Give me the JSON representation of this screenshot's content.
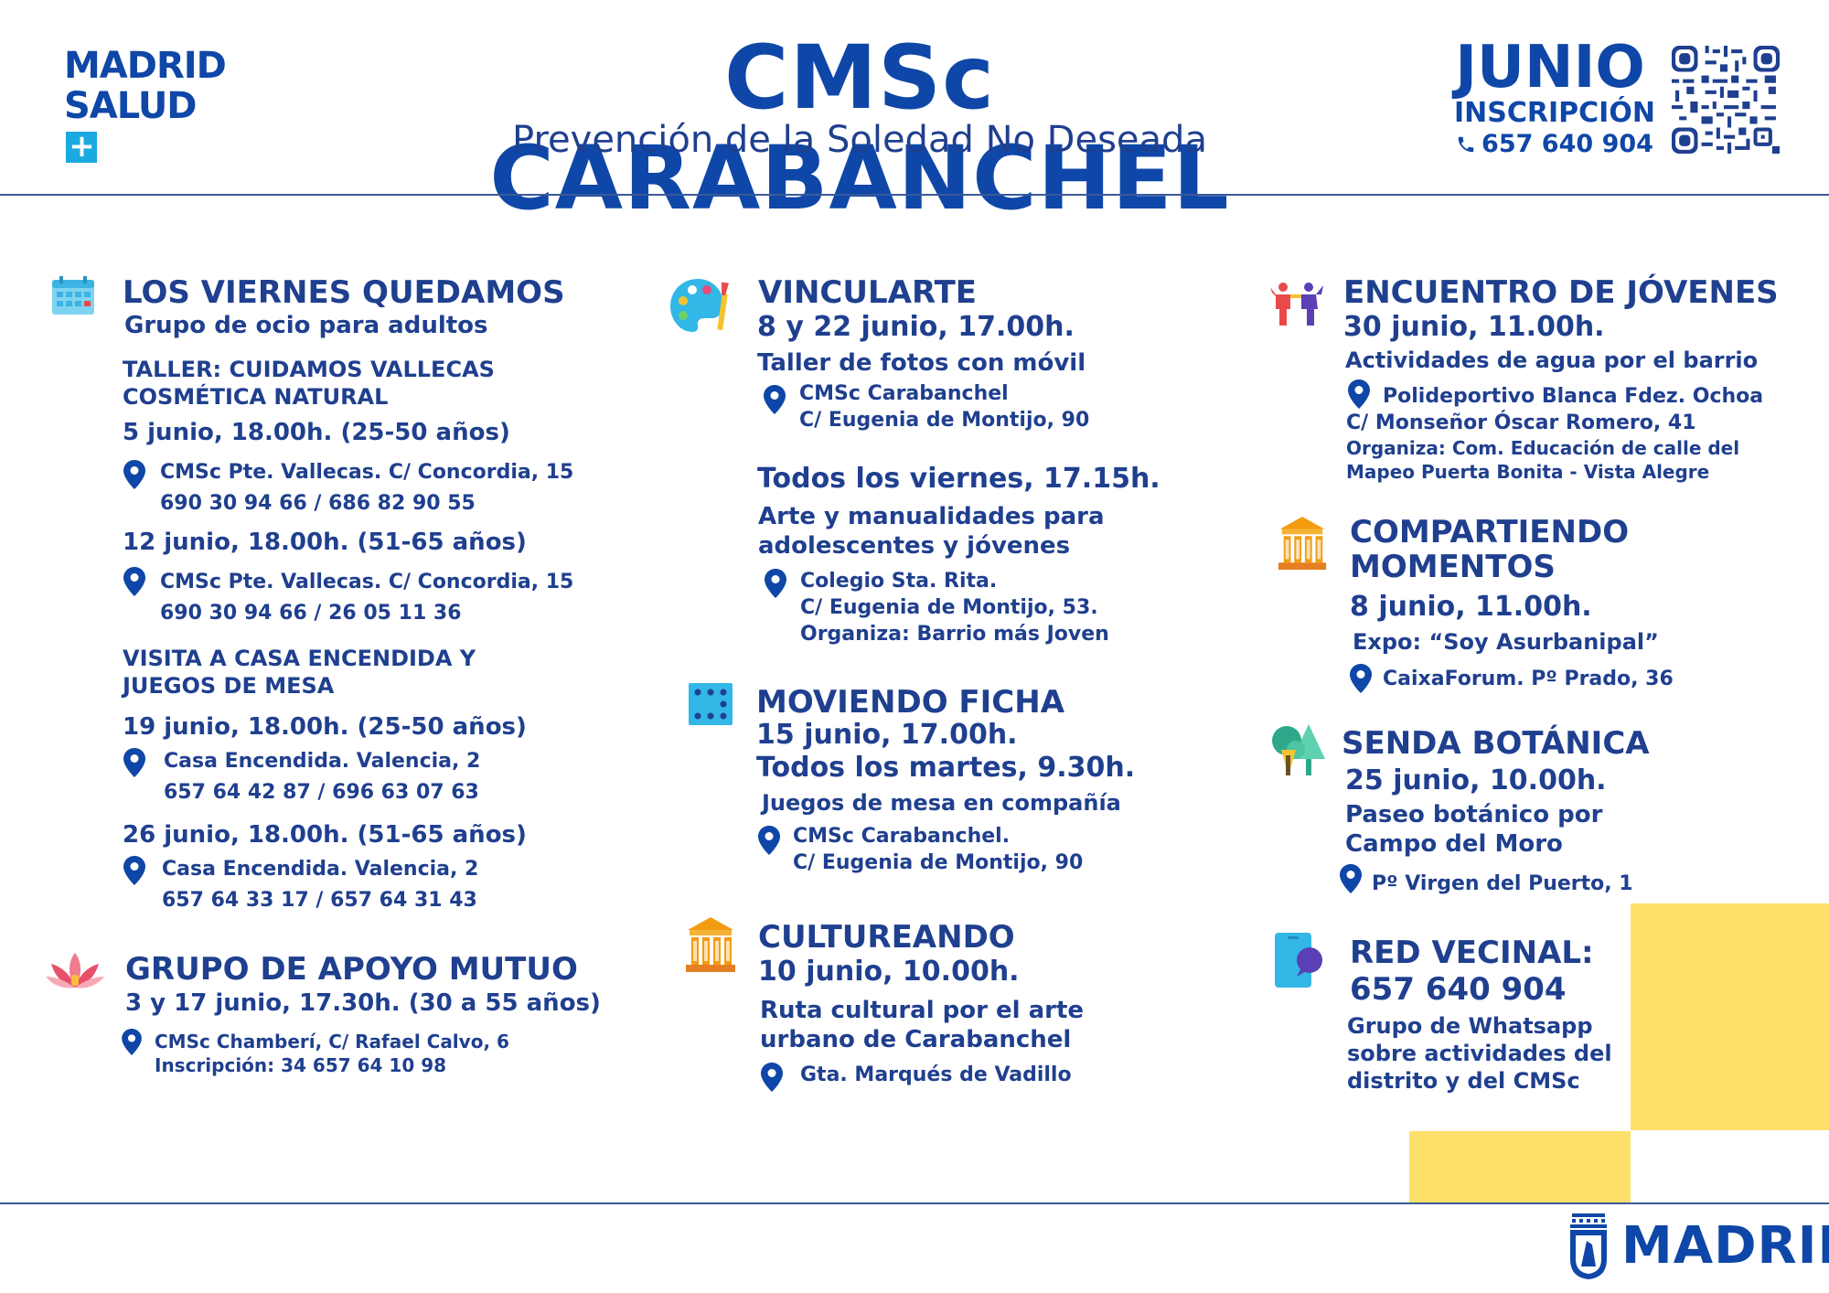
{
  "header": {
    "logo_line1": "MADRID",
    "logo_line2": "SALUD",
    "logo_plus": "+",
    "title": "CMSc CARABANCHEL",
    "subtitle": "Prevención de la Soledad No Deseada",
    "month": "JUNIO",
    "registration_label": "INSCRIPCIÓN",
    "registration_phone": "657 640 904"
  },
  "col1": {
    "viernes": {
      "title": "LOS VIERNES QUEDAMOS",
      "subtitle": "Grupo de ocio para adultos",
      "taller_line1": "TALLER: CUIDAMOS VALLECAS",
      "taller_line2": "COSMÉTICA NATURAL",
      "s1_date": "5 junio, 18.00h. (25-50 años)",
      "s1_loc": "CMSc Pte. Vallecas. C/ Concordia, 15",
      "s1_tel": "690 30 94 66 / 686 82 90 55",
      "s2_date": "12 junio, 18.00h. (51-65 años)",
      "s2_loc": "CMSc Pte. Vallecas. C/ Concordia, 15",
      "s2_tel": "690 30 94 66 / 26 05 11 36",
      "visita_line1": "VISITA A CASA ENCENDIDA Y",
      "visita_line2": "JUEGOS DE MESA",
      "s3_date": "19 junio, 18.00h. (25-50 años)",
      "s3_loc": "Casa Encendida. Valencia, 2",
      "s3_tel": "657 64 42 87 / 696 63 07 63",
      "s4_date": "26 junio, 18.00h. (51-65 años)",
      "s4_loc": "Casa Encendida. Valencia, 2",
      "s4_tel": "657 64 33 17 / 657 64 31 43"
    },
    "apoyo": {
      "title": "GRUPO DE APOYO MUTUO",
      "date": "3 y 17 junio, 17.30h. (30 a 55 años)",
      "loc": "CMSc Chamberí, C/ Rafael Calvo, 6",
      "inscripcion": "Inscripción: 34 657 64 10 98"
    }
  },
  "col2": {
    "vincularte": {
      "title": "VINCULARTE",
      "date": "8 y 22 junio, 17.00h.",
      "desc": "Taller de fotos con móvil",
      "loc1": "CMSc Carabanchel",
      "loc2": "C/ Eugenia de Montijo, 90",
      "date2": "Todos los viernes, 17.15h.",
      "desc2_line1": "Arte y manualidades para",
      "desc2_line2": "adolescentes y jóvenes",
      "loc2_1": "Colegio Sta. Rita.",
      "loc2_2": "C/ Eugenia de Montijo, 53.",
      "loc2_3": "Organiza: Barrio más Joven"
    },
    "moviendo": {
      "title": "MOVIENDO FICHA",
      "date1": "15 junio, 17.00h.",
      "date2": "Todos los martes, 9.30h.",
      "desc": "Juegos de mesa en compañía",
      "loc1": "CMSc Carabanchel.",
      "loc2": "C/ Eugenia de Montijo, 90"
    },
    "cultureando": {
      "title": "CULTUREANDO",
      "date": "10 junio, 10.00h.",
      "desc1": "Ruta cultural por el arte",
      "desc2": "urbano de Carabanchel",
      "loc": "Gta. Marqués de Vadillo"
    }
  },
  "col3": {
    "jovenes": {
      "title": "ENCUENTRO DE JÓVENES",
      "date": "30 junio, 11.00h.",
      "desc": "Actividades de agua por el barrio",
      "loc1": "Polideportivo Blanca Fdez. Ochoa",
      "loc2": "C/ Monseñor Óscar Romero, 41",
      "org1": "Organiza: Com. Educación de calle del",
      "org2": "Mapeo Puerta Bonita - Vista Alegre"
    },
    "compartiendo": {
      "title1": "COMPARTIENDO",
      "title2": "MOMENTOS",
      "date": "8 junio, 11.00h.",
      "desc": "Expo: “Soy Asurbanipal”",
      "loc": "CaixaForum. Pº Prado, 36"
    },
    "senda": {
      "title": "SENDA BOTÁNICA",
      "date": "25 junio, 10.00h.",
      "desc1": "Paseo botánico por",
      "desc2": "Campo del Moro",
      "loc": "Pº Virgen del Puerto, 1"
    },
    "red": {
      "title": "RED VECINAL:",
      "phone": "657 640 904",
      "desc1": "Grupo de Whatsapp",
      "desc2": "sobre actividades del",
      "desc3": "distrito y del CMSc"
    }
  },
  "footer": {
    "brand": "MADRID"
  },
  "icons": {
    "calendar": "calendar-icon",
    "palette": "palette-icon",
    "people": "people-icon",
    "lotus": "lotus-icon",
    "dice": "dice-icon",
    "museum": "museum-icon",
    "tree": "tree-icon",
    "chat": "chat-icon",
    "pin": "location-pin-icon",
    "phone": "phone-icon"
  },
  "colors": {
    "primary": "#0f47a8",
    "text": "#1f3f8f",
    "accent_yellow": "#fde06a",
    "logo_cyan": "#1aa9e0"
  }
}
